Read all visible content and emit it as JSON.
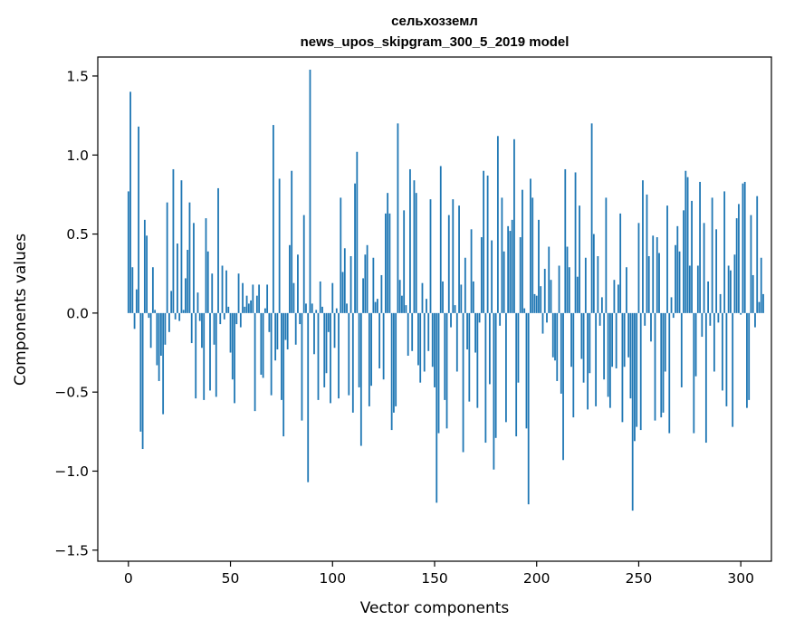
{
  "chart_data": {
    "type": "bar",
    "title_lines": [
      "сельхозземл",
      "news_upos_skipgram_300_5_2019 model"
    ],
    "xlabel": "Vector components",
    "ylabel": "Components values",
    "xlim": [
      -15,
      315
    ],
    "ylim": [
      -1.57,
      1.62
    ],
    "xticks": [
      0,
      50,
      100,
      150,
      200,
      250,
      300
    ],
    "xtick_labels": [
      "0",
      "50",
      "100",
      "150",
      "200",
      "250",
      "300"
    ],
    "yticks": [
      1.5,
      1.0,
      0.5,
      0.0,
      -0.5,
      -1.0,
      -1.5
    ],
    "ytick_labels": [
      "1.5",
      "1.0",
      "0.5",
      "0.0",
      "−0.5",
      "−1.0",
      "−1.5"
    ],
    "bar_color": "#1f77b4",
    "grid": false,
    "values": [
      0.77,
      1.4,
      0.29,
      -0.1,
      0.15,
      1.18,
      -0.75,
      -0.86,
      0.59,
      0.49,
      -0.03,
      -0.22,
      0.29,
      0.02,
      -0.33,
      -0.43,
      -0.27,
      -0.64,
      -0.2,
      0.7,
      -0.12,
      0.14,
      0.91,
      -0.04,
      0.44,
      -0.05,
      0.84,
      0.02,
      0.22,
      0.4,
      0.7,
      -0.19,
      0.57,
      -0.54,
      0.13,
      -0.05,
      -0.22,
      -0.55,
      0.6,
      0.39,
      -0.49,
      0.25,
      -0.2,
      -0.53,
      0.79,
      -0.07,
      0.3,
      -0.04,
      0.27,
      0.04,
      -0.25,
      -0.42,
      -0.57,
      -0.07,
      0.25,
      -0.09,
      0.19,
      0.04,
      0.11,
      0.06,
      0.08,
      0.18,
      -0.62,
      0.11,
      0.18,
      -0.39,
      -0.41,
      0.03,
      0.18,
      -0.12,
      -0.52,
      1.19,
      -0.3,
      -0.23,
      0.85,
      -0.55,
      -0.78,
      -0.17,
      -0.23,
      0.43,
      0.9,
      0.19,
      -0.2,
      0.37,
      -0.07,
      -0.68,
      0.62,
      0.06,
      -1.07,
      1.54,
      0.06,
      -0.26,
      0.02,
      -0.55,
      0.2,
      0.04,
      -0.47,
      -0.38,
      -0.12,
      -0.57,
      0.19,
      -0.22,
      0.03,
      -0.54,
      0.73,
      0.26,
      0.41,
      0.06,
      -0.52,
      0.36,
      -0.63,
      0.82,
      1.02,
      -0.47,
      -0.84,
      0.22,
      0.37,
      0.43,
      -0.59,
      -0.46,
      0.35,
      0.07,
      0.09,
      -0.35,
      0.24,
      -0.42,
      0.63,
      0.76,
      0.63,
      -0.74,
      -0.63,
      -0.59,
      1.2,
      0.21,
      0.11,
      0.65,
      0.05,
      -0.27,
      0.91,
      -0.24,
      0.84,
      0.76,
      -0.33,
      -0.44,
      0.19,
      -0.37,
      0.09,
      -0.24,
      0.72,
      -0.34,
      -0.47,
      -1.2,
      -0.76,
      0.93,
      0.2,
      -0.55,
      -0.73,
      0.62,
      -0.09,
      0.72,
      0.05,
      -0.37,
      0.68,
      0.18,
      -0.88,
      0.35,
      -0.23,
      -0.56,
      0.53,
      0.2,
      -0.25,
      -0.6,
      -0.06,
      0.48,
      0.9,
      -0.82,
      0.87,
      -0.45,
      0.46,
      -0.99,
      -0.79,
      1.12,
      -0.08,
      0.73,
      0.39,
      -0.69,
      0.55,
      0.52,
      0.59,
      1.1,
      -0.78,
      -0.44,
      0.48,
      0.78,
      0.03,
      -0.73,
      -1.21,
      0.85,
      0.73,
      0.12,
      0.11,
      0.59,
      0.17,
      -0.13,
      0.28,
      -0.06,
      0.42,
      0.21,
      -0.28,
      -0.3,
      -0.43,
      0.3,
      -0.51,
      -0.93,
      0.91,
      0.42,
      0.29,
      -0.34,
      -0.66,
      0.89,
      0.23,
      0.68,
      -0.29,
      -0.44,
      0.35,
      -0.61,
      -0.38,
      1.2,
      0.5,
      -0.59,
      0.36,
      -0.08,
      0.1,
      -0.42,
      0.73,
      -0.53,
      -0.6,
      -0.34,
      0.21,
      -0.35,
      0.18,
      0.63,
      -0.69,
      -0.34,
      0.29,
      -0.28,
      -0.54,
      -1.25,
      -0.81,
      -0.72,
      0.57,
      -0.74,
      0.84,
      -0.08,
      0.75,
      0.36,
      -0.18,
      0.49,
      -0.68,
      0.48,
      0.38,
      -0.66,
      -0.63,
      -0.37,
      0.68,
      -0.76,
      0.1,
      -0.03,
      0.43,
      0.55,
      0.39,
      -0.47,
      0.65,
      0.9,
      0.86,
      0.3,
      0.71,
      -0.76,
      -0.4,
      0.3,
      0.83,
      -0.15,
      0.57,
      -0.82,
      0.2,
      -0.08,
      0.73,
      -0.37,
      0.53,
      -0.06,
      0.12,
      -0.49,
      0.77,
      -0.59,
      0.3,
      0.27,
      -0.72,
      0.37,
      0.6,
      0.69,
      -0.01,
      0.82,
      0.83,
      -0.6,
      -0.55,
      0.62,
      0.24,
      -0.09,
      0.74,
      0.07,
      0.35,
      0.12
    ]
  }
}
